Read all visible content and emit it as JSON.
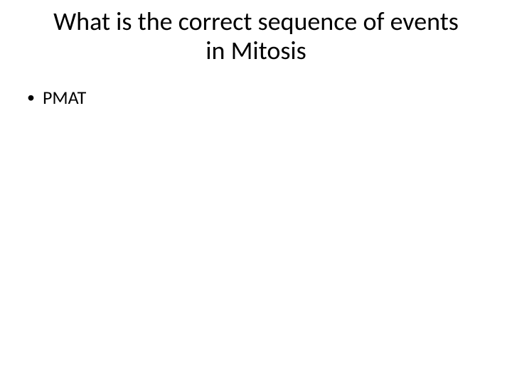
{
  "slide": {
    "title_line1": "What is the correct sequence of events",
    "title_line2": "in Mitosis",
    "bullets": [
      {
        "text": "PMAT"
      }
    ],
    "style": {
      "background_color": "#ffffff",
      "text_color": "#000000",
      "title_fontsize_pt": 36,
      "body_fontsize_pt": 26,
      "font_family": "Calibri",
      "bullet_glyph": "•"
    }
  }
}
